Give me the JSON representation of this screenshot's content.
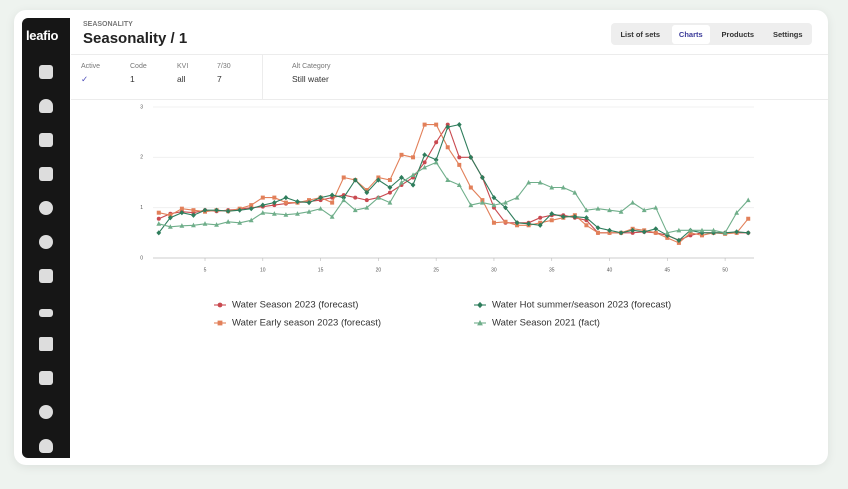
{
  "sidebar": {
    "logo": "leafio"
  },
  "header": {
    "section": "SEASONALITY",
    "title": "Seasonality / 1"
  },
  "tabs": [
    "List of sets",
    "Charts",
    "Products",
    "Settings"
  ],
  "info": [
    {
      "label": "Active",
      "value": "✓"
    },
    {
      "label": "Code",
      "value": "1"
    },
    {
      "label": "KVI",
      "value": "all"
    },
    {
      "label": "7/30",
      "value": "7"
    },
    {
      "label": "Alt Category",
      "value": "Still water"
    }
  ],
  "chart_data": {
    "type": "line",
    "x": [
      1,
      2,
      3,
      4,
      5,
      6,
      7,
      8,
      9,
      10,
      11,
      12,
      13,
      14,
      15,
      16,
      17,
      18,
      19,
      20,
      21,
      22,
      23,
      24,
      25,
      26,
      27,
      28,
      29,
      30,
      31,
      32,
      33,
      34,
      35,
      36,
      37,
      38,
      39,
      40,
      41,
      42,
      43,
      44,
      45,
      46,
      47,
      48,
      49,
      50,
      51,
      52
    ],
    "xlim": [
      0.5,
      52.5
    ],
    "xticks": [
      5,
      10,
      15,
      20,
      25,
      30,
      35,
      40,
      45,
      50
    ],
    "ylim": [
      0,
      3
    ],
    "yticks": [
      0,
      1,
      2,
      3
    ],
    "grid": true,
    "series": [
      {
        "name": "Water Season 2023 (forecast)",
        "color": "#c94a50",
        "marker": "circle",
        "values": [
          0.78,
          0.88,
          0.92,
          0.9,
          0.95,
          0.93,
          0.95,
          0.97,
          1.0,
          1.02,
          1.05,
          1.08,
          1.1,
          1.12,
          1.15,
          1.2,
          1.25,
          1.2,
          1.15,
          1.2,
          1.3,
          1.45,
          1.6,
          1.9,
          2.3,
          2.65,
          2.0,
          2.0,
          1.6,
          1.0,
          0.7,
          0.7,
          0.7,
          0.8,
          0.85,
          0.85,
          0.8,
          0.75,
          0.5,
          0.5,
          0.5,
          0.5,
          0.52,
          0.5,
          0.45,
          0.35,
          0.45,
          0.5,
          0.5,
          0.5,
          0.5,
          0.5
        ]
      },
      {
        "name": "Water Early season 2023 (forecast)",
        "color": "#e2805a",
        "marker": "square",
        "values": [
          0.9,
          0.85,
          0.98,
          0.95,
          0.92,
          0.95,
          0.93,
          0.98,
          1.05,
          1.2,
          1.2,
          1.1,
          1.1,
          1.15,
          1.2,
          1.1,
          1.6,
          1.55,
          1.35,
          1.6,
          1.55,
          2.05,
          2.0,
          2.65,
          2.65,
          2.2,
          1.85,
          1.4,
          1.15,
          0.7,
          0.72,
          0.65,
          0.65,
          0.7,
          0.75,
          0.8,
          0.85,
          0.65,
          0.5,
          0.5,
          0.5,
          0.58,
          0.55,
          0.5,
          0.4,
          0.3,
          0.5,
          0.45,
          0.5,
          0.48,
          0.5,
          0.78
        ]
      },
      {
        "name": "Water Hot summer/season 2023 (forecast)",
        "color": "#2e7d5c",
        "marker": "diamond",
        "values": [
          0.5,
          0.8,
          0.9,
          0.85,
          0.95,
          0.95,
          0.93,
          0.95,
          0.98,
          1.05,
          1.1,
          1.2,
          1.12,
          1.1,
          1.2,
          1.25,
          1.2,
          1.55,
          1.3,
          1.55,
          1.4,
          1.6,
          1.45,
          2.05,
          1.95,
          2.6,
          2.65,
          2.0,
          1.6,
          1.2,
          1.0,
          0.7,
          0.68,
          0.65,
          0.88,
          0.82,
          0.82,
          0.8,
          0.6,
          0.55,
          0.5,
          0.55,
          0.52,
          0.58,
          0.45,
          0.35,
          0.55,
          0.5,
          0.5,
          0.5,
          0.52,
          0.5
        ]
      },
      {
        "name": "Water Season 2021 (fact)",
        "color": "#6fae8a",
        "marker": "triangle",
        "values": [
          0.68,
          0.62,
          0.64,
          0.65,
          0.68,
          0.66,
          0.72,
          0.7,
          0.75,
          0.9,
          0.88,
          0.86,
          0.88,
          0.92,
          0.98,
          0.82,
          1.15,
          0.95,
          1.0,
          1.2,
          1.1,
          1.5,
          1.65,
          1.8,
          1.9,
          1.55,
          1.45,
          1.05,
          1.1,
          1.05,
          1.1,
          1.2,
          1.5,
          1.5,
          1.4,
          1.4,
          1.3,
          0.95,
          0.98,
          0.95,
          0.92,
          1.1,
          0.95,
          1.0,
          0.5,
          0.55,
          0.55,
          0.55,
          0.55,
          0.5,
          0.9,
          1.15
        ]
      }
    ]
  }
}
